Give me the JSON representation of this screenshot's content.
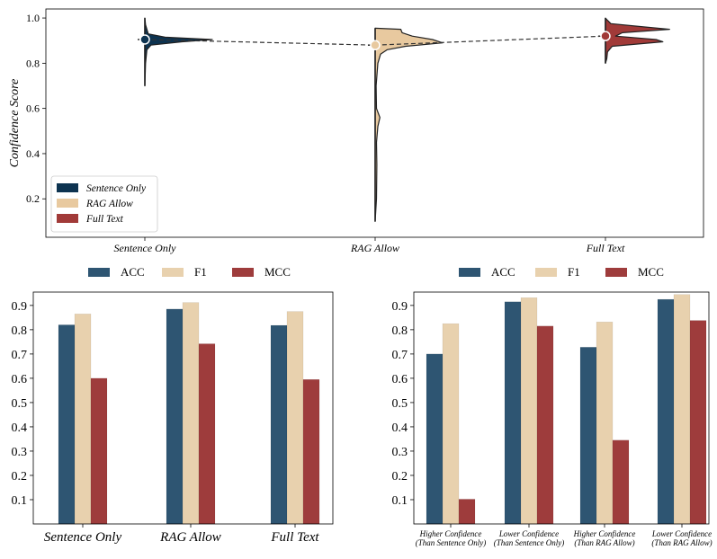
{
  "colors": {
    "sentence_only": "#0d3350",
    "rag_allow": "#e8c99f",
    "full_text": "#a13a38",
    "acc": "#2e5572",
    "f1": "#e8d1ae",
    "mcc": "#9e3c3c",
    "outline": "#222222"
  },
  "chart_data": [
    {
      "id": "violin",
      "type": "violin",
      "ylabel": "Confidence Score",
      "ylim": [
        0.03,
        1.04
      ],
      "yticks": [
        0.2,
        0.4,
        0.6,
        0.8,
        1.0
      ],
      "ytick_labels": [
        "0.2",
        "0.4",
        "0.6",
        "0.8",
        "1.0"
      ],
      "categories": [
        "Sentence Only",
        "RAG Allow",
        "Full Text"
      ],
      "series": [
        {
          "name": "Sentence Only",
          "range": [
            0.7,
            1.0
          ],
          "median": 0.905,
          "profile": [
            [
              0.7,
              0
            ],
            [
              0.8,
              0.01
            ],
            [
              0.86,
              0.03
            ],
            [
              0.88,
              0.09
            ],
            [
              0.895,
              0.55
            ],
            [
              0.905,
              1.0
            ],
            [
              0.915,
              0.3
            ],
            [
              0.93,
              0.05
            ],
            [
              0.97,
              0.01
            ],
            [
              1.0,
              0
            ]
          ]
        },
        {
          "name": "RAG Allow",
          "range": [
            0.1,
            0.955
          ],
          "median": 0.88,
          "profile": [
            [
              0.1,
              0
            ],
            [
              0.2,
              0.02
            ],
            [
              0.35,
              0.025
            ],
            [
              0.45,
              0.02
            ],
            [
              0.52,
              0.04
            ],
            [
              0.56,
              0.07
            ],
            [
              0.6,
              0.02
            ],
            [
              0.7,
              0.015
            ],
            [
              0.8,
              0.04
            ],
            [
              0.84,
              0.08
            ],
            [
              0.86,
              0.18
            ],
            [
              0.875,
              0.45
            ],
            [
              0.89,
              1.0
            ],
            [
              0.905,
              0.85
            ],
            [
              0.92,
              0.55
            ],
            [
              0.935,
              0.4
            ],
            [
              0.95,
              0.38
            ],
            [
              0.955,
              0
            ]
          ]
        },
        {
          "name": "Full Text",
          "range": [
            0.8,
            1.0
          ],
          "median": 0.92,
          "profile": [
            [
              0.8,
              0
            ],
            [
              0.82,
              0.02
            ],
            [
              0.85,
              0.03
            ],
            [
              0.875,
              0.1
            ],
            [
              0.895,
              0.85
            ],
            [
              0.905,
              0.75
            ],
            [
              0.92,
              0.15
            ],
            [
              0.935,
              0.25
            ],
            [
              0.95,
              0.95
            ],
            [
              0.96,
              0.6
            ],
            [
              0.975,
              0.08
            ],
            [
              0.99,
              0.03
            ],
            [
              1.0,
              0
            ]
          ]
        }
      ],
      "median_line": [
        0.905,
        0.88,
        0.92
      ],
      "legend": [
        "Sentence Only",
        "RAG Allow",
        "Full Text"
      ],
      "legend_position": "lower-left"
    },
    {
      "id": "bars-left",
      "type": "bar",
      "categories": [
        "Sentence Only",
        "RAG Allow",
        "Full Text"
      ],
      "series": [
        {
          "name": "ACC",
          "values": [
            0.82,
            0.885,
            0.818
          ]
        },
        {
          "name": "F1",
          "values": [
            0.865,
            0.912,
            0.875
          ]
        },
        {
          "name": "MCC",
          "values": [
            0.6,
            0.742,
            0.595
          ]
        }
      ],
      "ylim": [
        0.0,
        0.955
      ],
      "yticks": [
        0.1,
        0.2,
        0.3,
        0.4,
        0.5,
        0.6,
        0.7,
        0.8,
        0.9
      ],
      "ytick_labels": [
        "0.1",
        "0.2",
        "0.3",
        "0.4",
        "0.5",
        "0.6",
        "0.7",
        "0.8",
        "0.9"
      ],
      "legend": [
        "ACC",
        "F1",
        "MCC"
      ],
      "legend_position": "top"
    },
    {
      "id": "bars-right",
      "type": "bar",
      "categories": [
        "Higher Confidence\n(Than Sentence Only)",
        "Lower Confidence\n(Than Sentence Only)",
        "Higher Confidence\n(Than RAG Allow)",
        "Lower Confidence\n(Than RAG Allow)"
      ],
      "series": [
        {
          "name": "ACC",
          "values": [
            0.7,
            0.915,
            0.728,
            0.925
          ]
        },
        {
          "name": "F1",
          "values": [
            0.825,
            0.932,
            0.832,
            0.945
          ]
        },
        {
          "name": "MCC",
          "values": [
            0.102,
            0.815,
            0.345,
            0.838
          ]
        }
      ],
      "ylim": [
        0.0,
        0.955
      ],
      "yticks": [
        0.1,
        0.2,
        0.3,
        0.4,
        0.5,
        0.6,
        0.7,
        0.8,
        0.9
      ],
      "ytick_labels": [
        "0.1",
        "0.2",
        "0.3",
        "0.4",
        "0.5",
        "0.6",
        "0.7",
        "0.8",
        "0.9"
      ],
      "legend": [
        "ACC",
        "F1",
        "MCC"
      ],
      "legend_position": "top"
    }
  ]
}
